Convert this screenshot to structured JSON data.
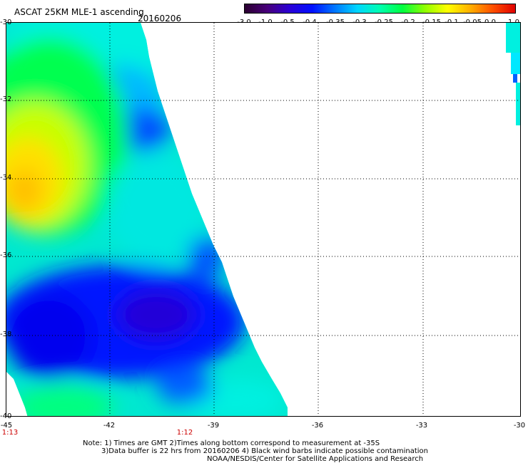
{
  "header": {
    "title": "ASCAT 25KM MLE-1 ascending",
    "date": "20160206"
  },
  "colorbar": {
    "stops": [
      "#2b0030",
      "#48007a",
      "#2a00d6",
      "#0010ff",
      "#0077ff",
      "#00d6ff",
      "#00ffb0",
      "#00ff40",
      "#90ff00",
      "#ffff00",
      "#ffb000",
      "#ff5000",
      "#e00000"
    ],
    "labels": [
      "-3.0",
      "-1.0",
      "-0.5",
      "-0.4",
      "-0.35",
      "-0.3",
      "-0.25",
      "-0.2",
      "-0.15",
      "-0.1",
      "-0.05",
      "0.0",
      "1.0"
    ]
  },
  "axes": {
    "y_labels": [
      "-30",
      "-32",
      "-34",
      "-36",
      "-38",
      "-40"
    ],
    "x_labels": [
      "-45",
      "-42",
      "-39",
      "-36",
      "-33",
      "-30"
    ],
    "time_labels": [
      "1:13",
      "1:12"
    ]
  },
  "notes": [
    "Note: 1) Times are GMT 2)Times along bottom correspond to measurement at -35S",
    "3)Data buffer is 22 hrs from 20160206 4) Black wind barbs indicate possible contamination",
    "NOAA/NESDIS/Center for Satellite Applications and Research"
  ]
}
